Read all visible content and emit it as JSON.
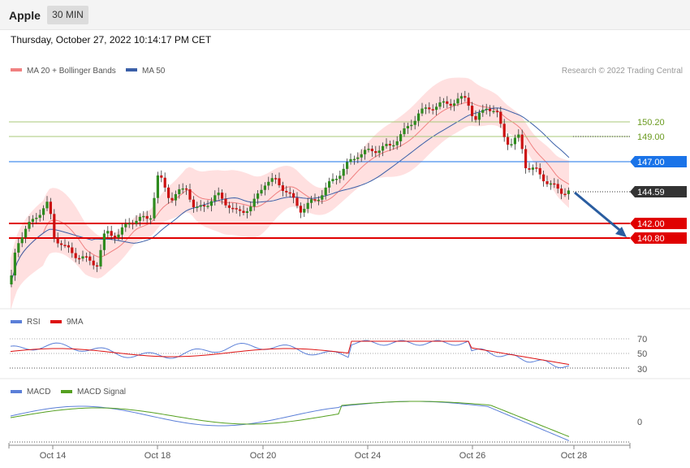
{
  "header": {
    "title": "Apple",
    "timeframe": "30 MIN"
  },
  "datetime": "Thursday, October 27, 2022 10:14:17 PM CET",
  "legend": {
    "ma20": "MA 20 + Bollinger Bands",
    "ma50": "MA 50",
    "credit": "Research © 2022 Trading Central",
    "rsi": "RSI",
    "rsi9": "9MA",
    "macd": "MACD",
    "macd_signal": "MACD Signal"
  },
  "colors": {
    "up": "#2e8b1e",
    "down": "#cc1111",
    "ma20": "#f08080",
    "ma50": "#3a5fa8",
    "band": "#ffd6d6",
    "blue_level": "#1a73e8",
    "red_level": "#e00000",
    "arrow": "#2a5da0",
    "rsi": "#5b7fd8",
    "rsi9": "#dd1111",
    "macd": "#5b7fd8",
    "macd_signal": "#55a020"
  },
  "levels": [
    {
      "value": "150.20",
      "kind": "green"
    },
    {
      "value": "149.00",
      "kind": "green"
    },
    {
      "value": "147.00",
      "kind": "blue"
    },
    {
      "value": "144.59",
      "kind": "last"
    },
    {
      "value": "142.00",
      "kind": "red"
    },
    {
      "value": "140.80",
      "kind": "red"
    }
  ],
  "rsi_ticks": [
    "70",
    "50",
    "30"
  ],
  "macd_ticks": [
    "0"
  ],
  "x_ticks": [
    "Oct 14",
    "Oct 18",
    "Oct 20",
    "Oct 24",
    "Oct 26",
    "Oct 28"
  ]
}
